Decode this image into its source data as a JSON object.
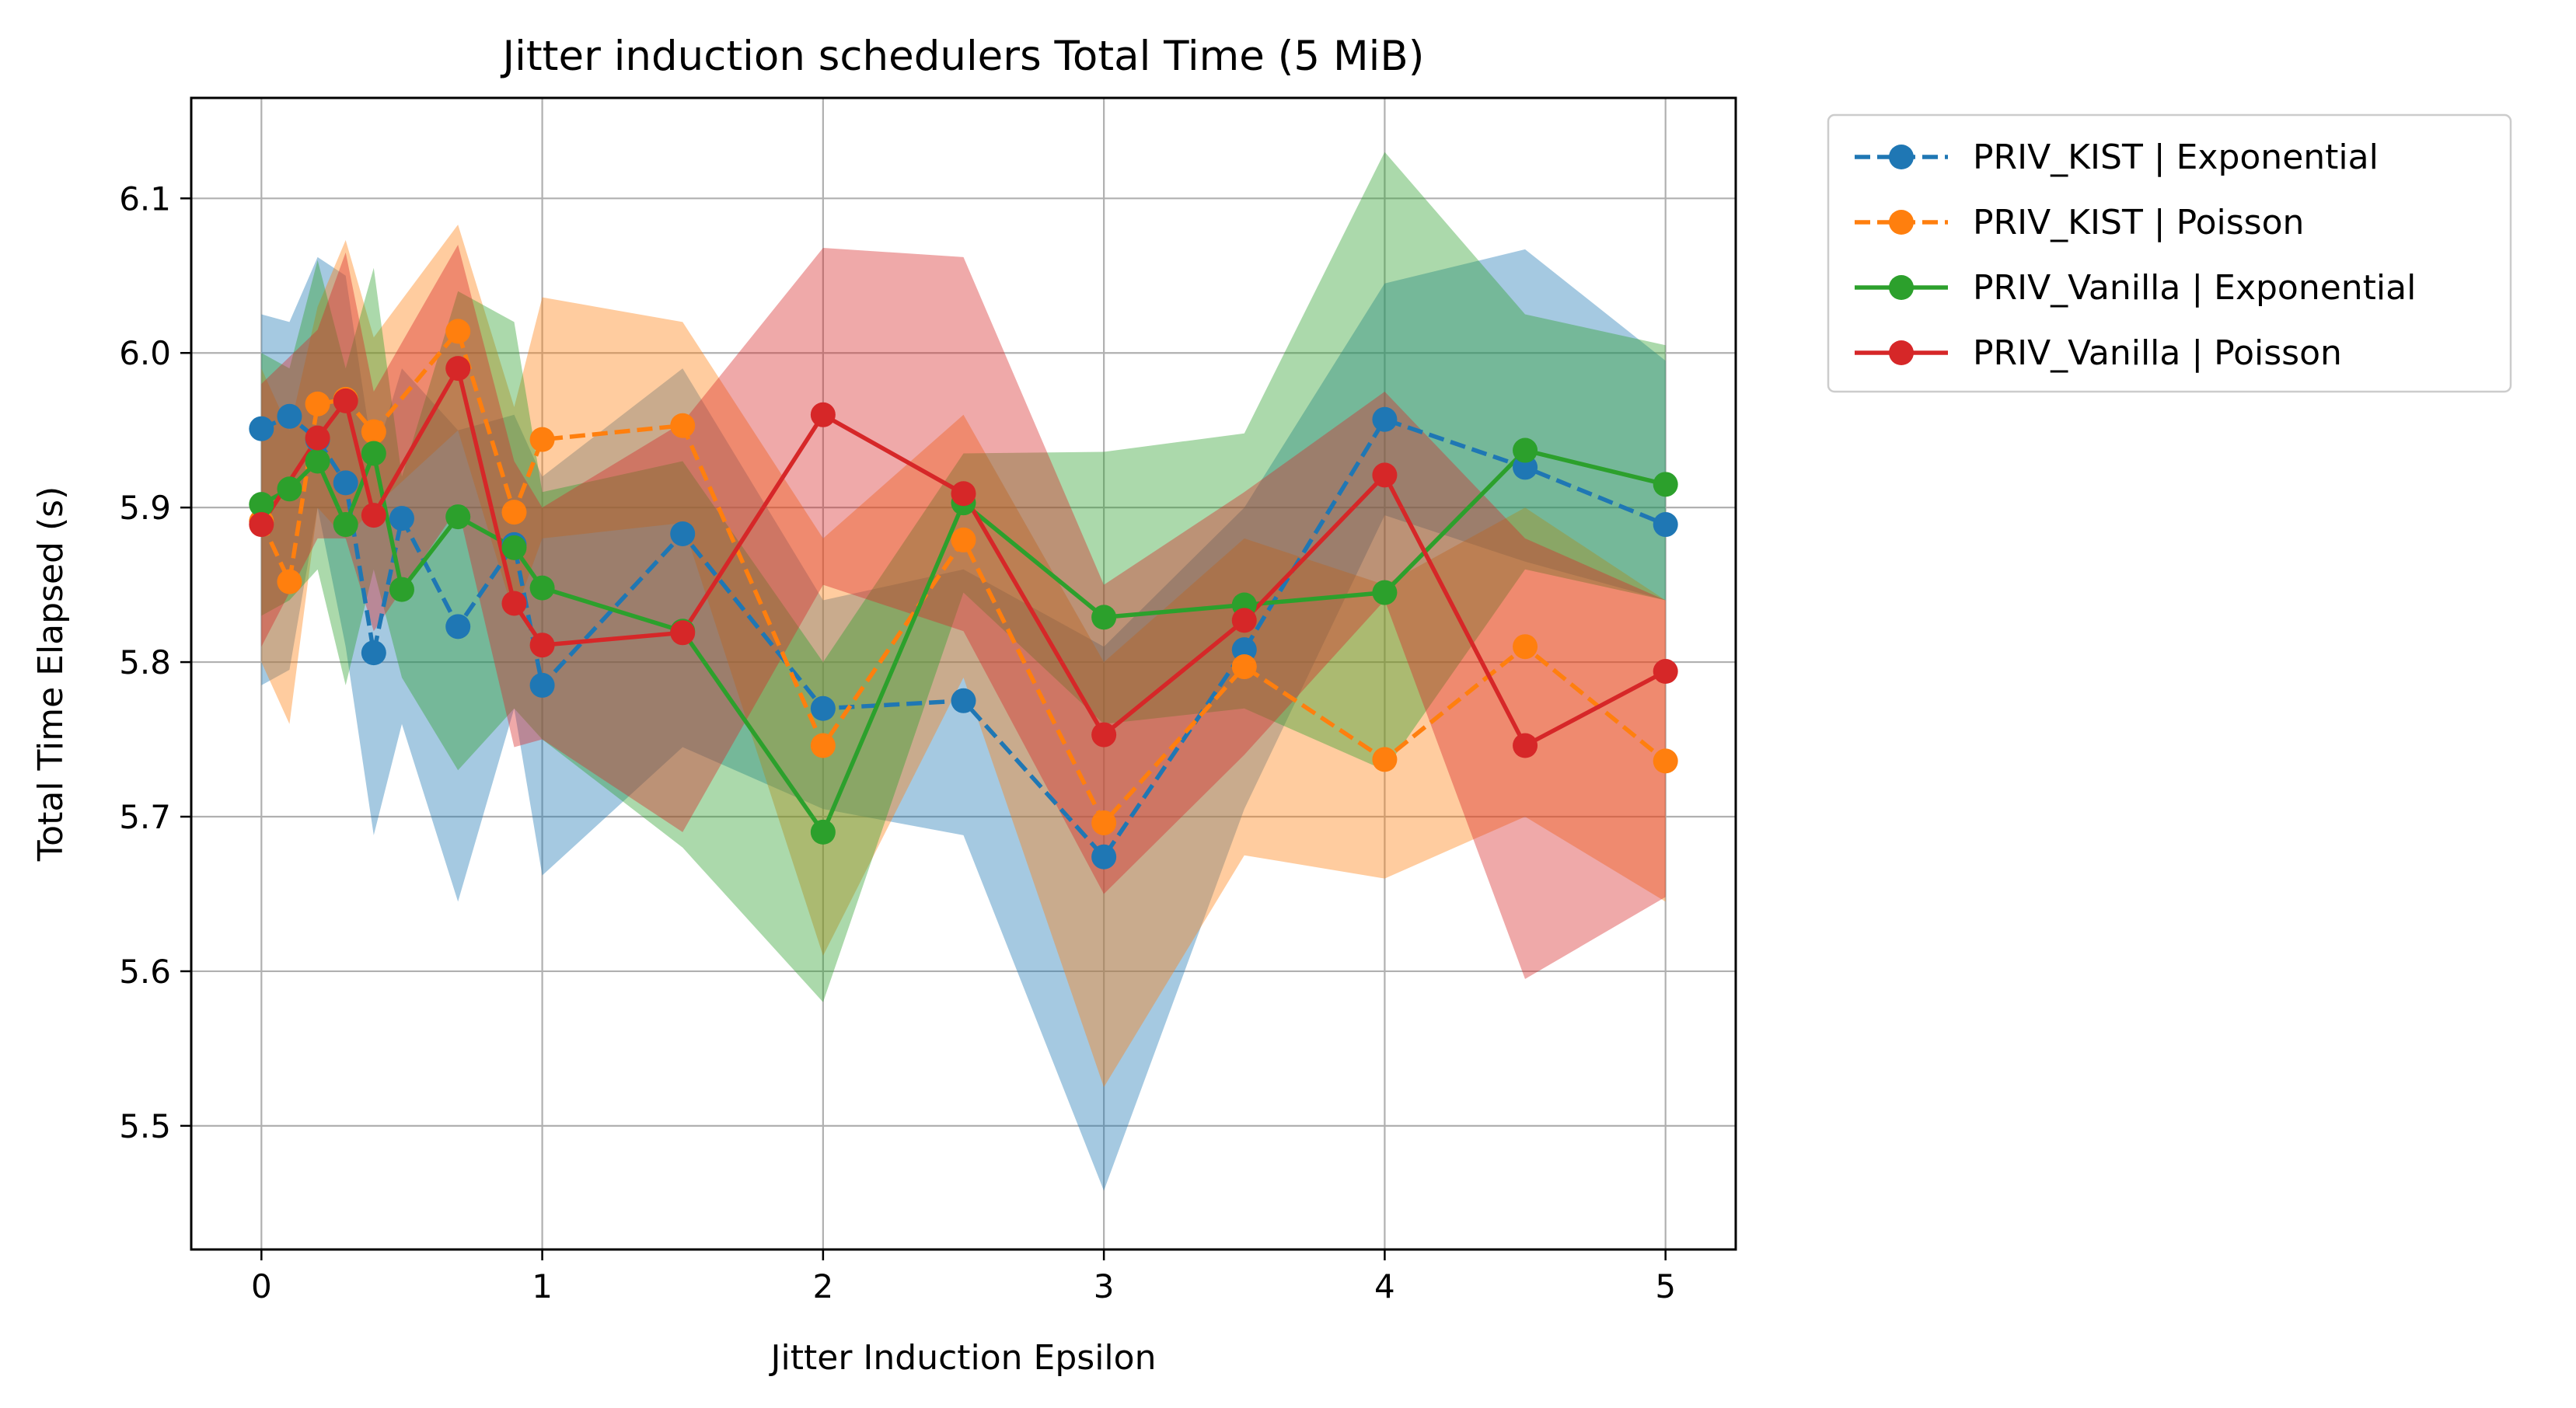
{
  "chart_data": {
    "type": "line",
    "title": "Jitter induction schedulers Total Time (5 MiB)",
    "xlabel": "Jitter Induction Epsilon",
    "ylabel": "Total Time Elapsed (s)",
    "xlim": [
      -0.25,
      5.25
    ],
    "ylim": [
      5.42,
      6.165
    ],
    "xticks": [
      0,
      1,
      2,
      3,
      4,
      5
    ],
    "yticks": [
      5.5,
      5.6,
      5.7,
      5.8,
      5.9,
      6.0,
      6.1
    ],
    "ytick_labels": [
      "5.5",
      "5.6",
      "5.7",
      "5.8",
      "5.9",
      "6.0",
      "6.1"
    ],
    "grid": true,
    "legend_position": "outside upper right",
    "x": [
      0,
      0.1,
      0.2,
      0.3,
      0.4,
      0.5,
      0.7,
      0.9,
      1,
      1.5,
      2,
      2.5,
      3,
      3.5,
      4,
      4.5,
      5
    ],
    "series": [
      {
        "name": "PRIV_KIST | Exponential",
        "color": "#1f77b4",
        "linestyle": "dashed",
        "values": [
          5.951,
          5.959,
          5.944,
          5.916,
          5.806,
          5.893,
          5.823,
          5.876,
          5.785,
          5.883,
          5.77,
          5.775,
          5.674,
          5.808,
          5.957,
          5.926,
          5.889
        ],
        "lower": [
          5.785,
          5.795,
          5.9,
          5.81,
          5.688,
          5.76,
          5.645,
          5.77,
          5.662,
          5.745,
          5.705,
          5.688,
          5.458,
          5.705,
          5.895,
          5.865,
          5.84
        ],
        "upper": [
          6.025,
          6.02,
          6.062,
          6.05,
          5.93,
          5.99,
          5.95,
          5.96,
          5.92,
          5.99,
          5.84,
          5.86,
          5.81,
          5.9,
          6.045,
          6.067,
          5.995
        ]
      },
      {
        "name": "PRIV_KIST | Poisson",
        "color": "#ff7f0e",
        "linestyle": "dashed",
        "values": [
          5.891,
          5.852,
          5.967,
          5.97,
          5.949,
          null,
          6.014,
          5.897,
          5.944,
          5.953,
          5.746,
          5.879,
          5.696,
          5.797,
          5.737,
          5.81,
          5.736
        ],
        "lower": [
          5.8,
          5.76,
          5.9,
          5.88,
          5.9,
          null,
          5.95,
          5.83,
          5.88,
          5.89,
          5.61,
          5.79,
          5.525,
          5.675,
          5.66,
          5.7,
          5.645
        ],
        "upper": [
          5.99,
          5.95,
          6.03,
          6.073,
          6.01,
          null,
          6.083,
          5.965,
          6.036,
          6.02,
          5.88,
          5.96,
          5.8,
          5.88,
          5.85,
          5.9,
          5.84
        ]
      },
      {
        "name": "PRIV_Vanilla | Exponential",
        "color": "#2ca02c",
        "linestyle": "solid",
        "values": [
          5.902,
          5.912,
          5.93,
          5.889,
          5.935,
          5.847,
          5.894,
          5.874,
          5.848,
          5.82,
          5.69,
          5.903,
          5.829,
          5.837,
          5.845,
          5.937,
          5.915
        ],
        "lower": [
          5.83,
          5.84,
          5.86,
          5.785,
          5.86,
          5.79,
          5.73,
          5.77,
          5.75,
          5.68,
          5.58,
          5.845,
          5.76,
          5.77,
          5.73,
          5.86,
          5.84
        ],
        "upper": [
          6.0,
          5.99,
          6.06,
          5.99,
          6.055,
          5.92,
          6.04,
          6.02,
          5.91,
          5.93,
          5.8,
          5.935,
          5.936,
          5.948,
          6.13,
          6.025,
          6.005
        ]
      },
      {
        "name": "PRIV_Vanilla | Poisson",
        "color": "#d62728",
        "linestyle": "solid",
        "values": [
          5.889,
          null,
          5.945,
          5.969,
          5.895,
          null,
          5.99,
          5.838,
          5.811,
          5.819,
          5.96,
          5.909,
          5.753,
          5.827,
          5.921,
          5.746,
          5.794
        ],
        "lower": [
          5.81,
          null,
          5.88,
          5.88,
          5.82,
          null,
          5.9,
          5.745,
          5.75,
          5.69,
          5.85,
          5.82,
          5.65,
          5.74,
          5.84,
          5.595,
          5.648
        ],
        "upper": [
          5.98,
          null,
          6.015,
          6.065,
          5.975,
          null,
          6.07,
          5.93,
          5.9,
          5.955,
          6.068,
          6.062,
          5.85,
          5.91,
          5.975,
          5.88,
          5.84
        ]
      }
    ]
  }
}
